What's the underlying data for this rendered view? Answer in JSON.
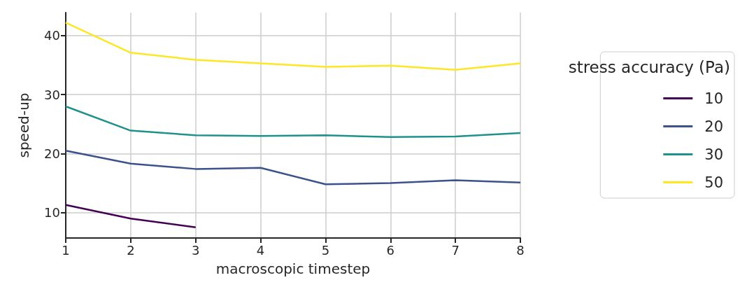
{
  "chart_data": {
    "type": "line",
    "xlabel": "macroscopic timestep",
    "ylabel": "speed-up",
    "legend_title": "stress accuracy (Pa)",
    "x": [
      1,
      2,
      3,
      4,
      5,
      6,
      7,
      8
    ],
    "series": [
      {
        "name": "10",
        "color": "#440154",
        "values": [
          11.3,
          9.0,
          7.5,
          null,
          null,
          null,
          null,
          null
        ]
      },
      {
        "name": "20",
        "color": "#3b528b",
        "values": [
          20.5,
          18.3,
          17.4,
          17.6,
          14.8,
          15.0,
          15.5,
          15.1
        ]
      },
      {
        "name": "30",
        "color": "#21918c",
        "values": [
          28.0,
          23.9,
          23.1,
          23.0,
          23.1,
          22.8,
          22.9,
          23.5
        ]
      },
      {
        "name": "50",
        "color": "#fde725",
        "values": [
          42.2,
          37.1,
          35.9,
          35.3,
          34.7,
          34.9,
          34.2,
          35.3
        ]
      }
    ],
    "xlim": [
      1,
      8
    ],
    "xticks": [
      1,
      2,
      3,
      4,
      5,
      6,
      7,
      8
    ],
    "ylim": [
      5.7,
      43.9
    ],
    "yticks": [
      10,
      20,
      30,
      40
    ],
    "grid": true,
    "legend": "right",
    "marker": "none",
    "line_style": "solid"
  }
}
